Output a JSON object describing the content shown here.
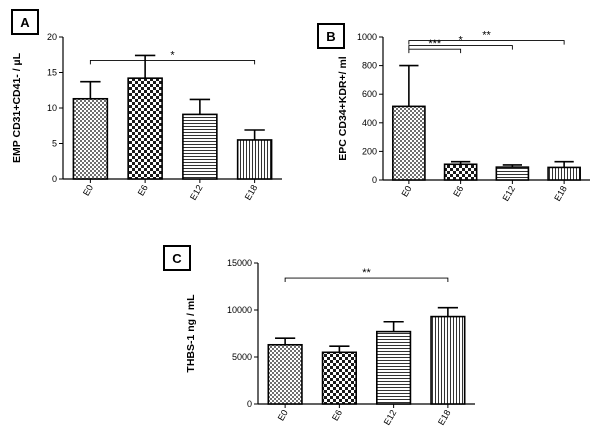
{
  "chart_data": [
    {
      "panel_label": "A",
      "type": "bar",
      "title": "",
      "xlabel": "",
      "ylabel": "EMP CD31+CD41- / µL",
      "categories": [
        "E0",
        "E6",
        "E12",
        "E18"
      ],
      "values": [
        11.3,
        14.2,
        9.1,
        5.5
      ],
      "errors": [
        2.4,
        3.2,
        2.1,
        1.4
      ],
      "patterns": [
        "checker-fine",
        "checker-coarse",
        "horizontal-lines",
        "vertical-lines"
      ],
      "ylim": [
        0,
        20
      ],
      "yticks": [
        0,
        5,
        10,
        15,
        20
      ],
      "grid": false,
      "significance": [
        {
          "from": "E0",
          "to": "E18",
          "label": "*",
          "y": 16.7
        }
      ]
    },
    {
      "panel_label": "B",
      "type": "bar",
      "title": "",
      "xlabel": "",
      "ylabel": "EPC CD34+KDR+/ ml",
      "categories": [
        "E0",
        "E6",
        "E12",
        "E18"
      ],
      "values": [
        515,
        110,
        90,
        88
      ],
      "errors": [
        285,
        18,
        15,
        40
      ],
      "patterns": [
        "checker-fine",
        "checker-coarse",
        "horizontal-lines",
        "vertical-lines"
      ],
      "ylim": [
        0,
        1000
      ],
      "yticks": [
        0,
        200,
        400,
        600,
        800,
        1000
      ],
      "grid": false,
      "significance": [
        {
          "from": "E0",
          "to": "E18",
          "label": "**",
          "y": 975
        },
        {
          "from": "E0",
          "to": "E12",
          "label": "*",
          "y": 940
        },
        {
          "from": "E0",
          "to": "E6",
          "label": "***",
          "y": 915
        }
      ]
    },
    {
      "panel_label": "C",
      "type": "bar",
      "title": "",
      "xlabel": "",
      "ylabel": "THBS-1  ng / mL",
      "categories": [
        "E0",
        "E6",
        "E12",
        "E18"
      ],
      "values": [
        6300,
        5500,
        7700,
        9300
      ],
      "errors": [
        700,
        650,
        1050,
        950
      ],
      "patterns": [
        "checker-fine",
        "checker-coarse",
        "horizontal-lines",
        "vertical-lines"
      ],
      "ylim": [
        0,
        15000
      ],
      "yticks": [
        0,
        5000,
        10000,
        15000
      ],
      "grid": false,
      "significance": [
        {
          "from": "E0",
          "to": "E18",
          "label": "**",
          "y": 13400
        }
      ]
    }
  ]
}
